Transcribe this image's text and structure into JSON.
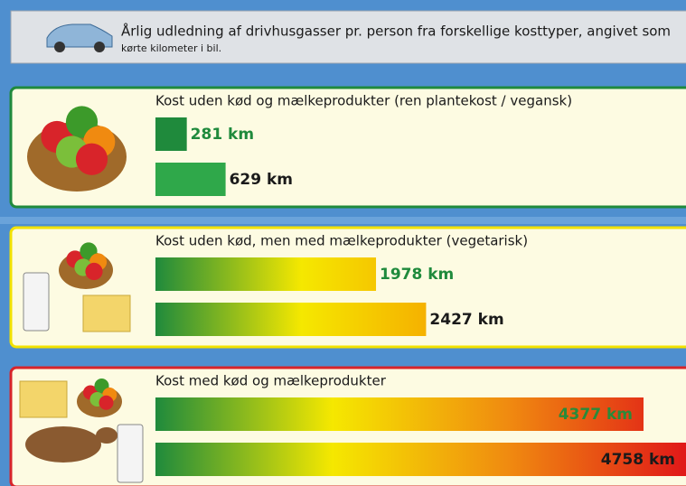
{
  "header": {
    "title": "Årlig udledning af drivhusgasser pr. person fra forskellige kosttyper, angivet som",
    "subtitle": "kørte kilometer i bil."
  },
  "chart_data": {
    "type": "bar",
    "groups": [
      {
        "title": "Kost uden kød og mælkeprodukter (ren plantekost / vegansk)",
        "values": [
          281,
          629
        ],
        "value_labels": [
          "281 km",
          "629 km"
        ],
        "color": "#1f8a3c",
        "colors": [
          "#1f8a3c",
          "#2fa84a"
        ]
      },
      {
        "title": "Kost uden kød, men med mælkeprodukter (vegetarisk)",
        "values": [
          1978,
          2427
        ],
        "value_labels": [
          "1978 km",
          "2427 km"
        ],
        "color": "#f2e200",
        "colors": [
          "#1f8a3c",
          "#f5e800",
          "#f5a800"
        ]
      },
      {
        "title": "Kost med kød og mælkeprodukter",
        "values": [
          4377,
          4758
        ],
        "value_labels": [
          "4377 km",
          "4758 km"
        ],
        "color": "#d8242a",
        "colors": [
          "#1f8a3c",
          "#f5e800",
          "#f08a10",
          "#e01818"
        ]
      }
    ]
  }
}
